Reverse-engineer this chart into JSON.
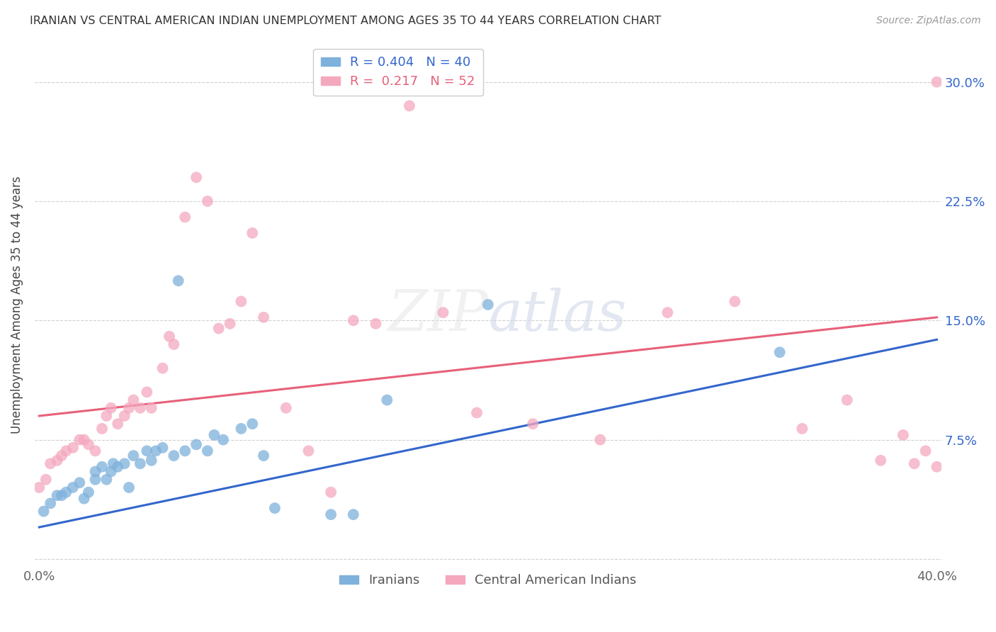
{
  "title": "IRANIAN VS CENTRAL AMERICAN INDIAN UNEMPLOYMENT AMONG AGES 35 TO 44 YEARS CORRELATION CHART",
  "source": "Source: ZipAtlas.com",
  "ylabel": "Unemployment Among Ages 35 to 44 years",
  "xlim": [
    0.0,
    0.4
  ],
  "ylim": [
    0.0,
    0.32
  ],
  "xticks": [
    0.0,
    0.1,
    0.2,
    0.3,
    0.4
  ],
  "xtick_labels": [
    "0.0%",
    "",
    "",
    "",
    "40.0%"
  ],
  "yticks": [
    0.0,
    0.075,
    0.15,
    0.225,
    0.3
  ],
  "ytick_labels_right": [
    "",
    "7.5%",
    "15.0%",
    "22.5%",
    "30.0%"
  ],
  "legend_R_blue": "0.404",
  "legend_N_blue": "40",
  "legend_R_pink": "0.217",
  "legend_N_pink": "52",
  "blue_color": "#7EB1DC",
  "pink_color": "#F4A8BE",
  "trend_blue": "#3366CC",
  "trend_pink": "#E8607A",
  "tick_label_color": "#3366CC",
  "iranians_x": [
    0.002,
    0.005,
    0.008,
    0.01,
    0.012,
    0.015,
    0.018,
    0.02,
    0.022,
    0.025,
    0.025,
    0.028,
    0.03,
    0.032,
    0.033,
    0.035,
    0.038,
    0.04,
    0.042,
    0.045,
    0.048,
    0.05,
    0.052,
    0.055,
    0.06,
    0.062,
    0.065,
    0.07,
    0.075,
    0.078,
    0.082,
    0.09,
    0.095,
    0.1,
    0.105,
    0.13,
    0.14,
    0.155,
    0.2,
    0.33
  ],
  "iranians_y": [
    0.03,
    0.035,
    0.04,
    0.04,
    0.042,
    0.045,
    0.048,
    0.038,
    0.042,
    0.05,
    0.055,
    0.058,
    0.05,
    0.055,
    0.06,
    0.058,
    0.06,
    0.045,
    0.065,
    0.06,
    0.068,
    0.062,
    0.068,
    0.07,
    0.065,
    0.175,
    0.068,
    0.072,
    0.068,
    0.078,
    0.075,
    0.082,
    0.085,
    0.065,
    0.032,
    0.028,
    0.028,
    0.1,
    0.16,
    0.13
  ],
  "central_x": [
    0.0,
    0.003,
    0.005,
    0.008,
    0.01,
    0.012,
    0.015,
    0.018,
    0.02,
    0.022,
    0.025,
    0.028,
    0.03,
    0.032,
    0.035,
    0.038,
    0.04,
    0.042,
    0.045,
    0.048,
    0.05,
    0.055,
    0.058,
    0.06,
    0.065,
    0.07,
    0.075,
    0.08,
    0.085,
    0.09,
    0.095,
    0.1,
    0.11,
    0.12,
    0.13,
    0.14,
    0.15,
    0.165,
    0.18,
    0.195,
    0.22,
    0.25,
    0.28,
    0.31,
    0.34,
    0.36,
    0.375,
    0.385,
    0.39,
    0.395,
    0.4,
    0.4
  ],
  "central_y": [
    0.045,
    0.05,
    0.06,
    0.062,
    0.065,
    0.068,
    0.07,
    0.075,
    0.075,
    0.072,
    0.068,
    0.082,
    0.09,
    0.095,
    0.085,
    0.09,
    0.095,
    0.1,
    0.095,
    0.105,
    0.095,
    0.12,
    0.14,
    0.135,
    0.215,
    0.24,
    0.225,
    0.145,
    0.148,
    0.162,
    0.205,
    0.152,
    0.095,
    0.068,
    0.042,
    0.15,
    0.148,
    0.285,
    0.155,
    0.092,
    0.085,
    0.075,
    0.155,
    0.162,
    0.082,
    0.1,
    0.062,
    0.078,
    0.06,
    0.068,
    0.058,
    0.3
  ],
  "blue_trend_start_y": 0.02,
  "blue_trend_end_y": 0.138,
  "pink_trend_start_y": 0.09,
  "pink_trend_end_y": 0.152
}
